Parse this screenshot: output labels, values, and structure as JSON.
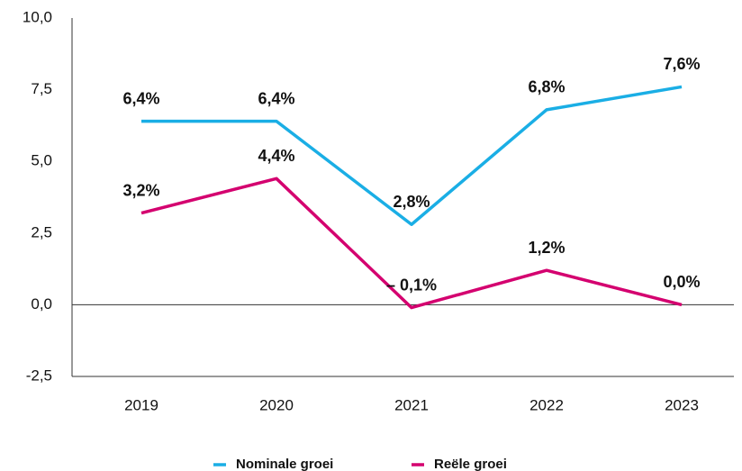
{
  "chart_data": {
    "type": "line",
    "categories": [
      "2019",
      "2020",
      "2021",
      "2022",
      "2023"
    ],
    "series": [
      {
        "name": "Nominale groei",
        "color": "#1aaee5",
        "values": [
          6.4,
          6.4,
          2.8,
          6.8,
          7.6
        ],
        "value_labels": [
          "6,4%",
          "6,4%",
          "2,8%",
          "6,8%",
          "7,6%"
        ]
      },
      {
        "name": "Reële groei",
        "color": "#d4006f",
        "values": [
          3.2,
          4.4,
          -0.1,
          1.2,
          0.0
        ],
        "value_labels": [
          "3,2%",
          "4,4%",
          "– 0,1%",
          "1,2%",
          "0,0%"
        ]
      }
    ],
    "ylim": [
      -2.5,
      10
    ],
    "yticks": [
      {
        "value": -2.5,
        "label": "-2,5"
      },
      {
        "value": 0,
        "label": "0,0"
      },
      {
        "value": 2.5,
        "label": "2,5"
      },
      {
        "value": 5,
        "label": "5,0"
      },
      {
        "value": 7.5,
        "label": "7,5"
      },
      {
        "value": 10,
        "label": "10,0"
      }
    ],
    "legend": "bottom"
  }
}
